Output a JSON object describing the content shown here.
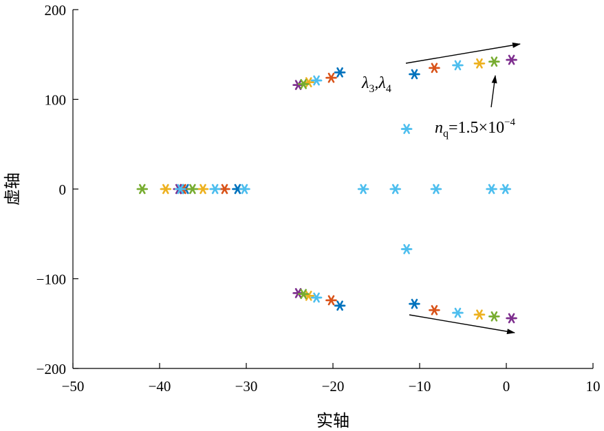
{
  "chart_data": {
    "type": "scatter",
    "title": "",
    "xlabel": "实轴",
    "ylabel": "虚轴",
    "xlim": [
      -50,
      10
    ],
    "ylim": [
      -200,
      200
    ],
    "xticks": [
      -50,
      -40,
      -30,
      -20,
      -10,
      0,
      10
    ],
    "yticks": [
      -200,
      -100,
      0,
      100,
      200
    ],
    "xtick_labels": [
      "−50",
      "−40",
      "−30",
      "−20",
      "−10",
      "0",
      "10"
    ],
    "ytick_labels": [
      "−200",
      "−100",
      "0",
      "100",
      "200"
    ],
    "grid": false,
    "marker": "asterisk",
    "colors": [
      "#0072BD",
      "#D95319",
      "#EDB120",
      "#7E2F8E",
      "#77AC30",
      "#4DBEEE"
    ],
    "series": [
      {
        "color": "#0072BD",
        "points": [
          [
            -19.2,
            130
          ],
          [
            -19.2,
            -130
          ],
          [
            -10.6,
            128
          ],
          [
            -10.6,
            -128
          ],
          [
            -31.0,
            0
          ],
          [
            -37.0,
            0
          ]
        ]
      },
      {
        "color": "#D95319",
        "points": [
          [
            -20.2,
            124
          ],
          [
            -20.2,
            -124
          ],
          [
            -8.3,
            135
          ],
          [
            -8.3,
            -135
          ],
          [
            -32.5,
            0
          ],
          [
            -37.3,
            0
          ]
        ]
      },
      {
        "color": "#EDB120",
        "points": [
          [
            -22.8,
            119
          ],
          [
            -22.8,
            -119
          ],
          [
            -3.1,
            140
          ],
          [
            -3.1,
            -140
          ],
          [
            -35.0,
            0
          ],
          [
            -39.3,
            0
          ]
        ]
      },
      {
        "color": "#7E2F8E",
        "points": [
          [
            -24.0,
            116
          ],
          [
            -24.0,
            -116
          ],
          [
            0.6,
            144
          ],
          [
            0.6,
            -144
          ],
          [
            -37.8,
            0
          ]
        ]
      },
      {
        "color": "#77AC30",
        "points": [
          [
            -23.4,
            117
          ],
          [
            -23.4,
            -117
          ],
          [
            -1.4,
            142
          ],
          [
            -1.4,
            -142
          ],
          [
            -42.0,
            0
          ],
          [
            -36.2,
            0
          ]
        ]
      },
      {
        "color": "#4DBEEE",
        "points": [
          [
            -21.9,
            121
          ],
          [
            -21.9,
            -121
          ],
          [
            -5.6,
            138
          ],
          [
            -5.6,
            -138
          ],
          [
            -33.6,
            0
          ],
          [
            -37.6,
            0
          ],
          [
            -30.2,
            0
          ],
          [
            -16.5,
            0
          ],
          [
            -12.8,
            0
          ],
          [
            -8.1,
            0
          ],
          [
            -1.7,
            0
          ],
          [
            -0.1,
            0
          ],
          [
            -11.5,
            67
          ],
          [
            -11.5,
            -67
          ]
        ]
      }
    ],
    "annotations": [
      {
        "text_parts": [
          "λ",
          "3",
          ",λ",
          "4"
        ]
      },
      {
        "text_parts": [
          "n",
          "q",
          "=1.5×10",
          "−4"
        ]
      }
    ]
  }
}
